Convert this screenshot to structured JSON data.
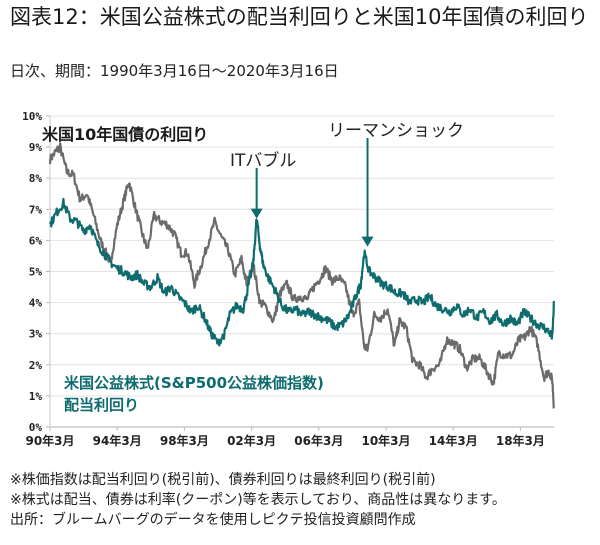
{
  "header": {
    "title": "図表12：米国公益株式の配当利回りと米国10年国債の利回り",
    "subtitle": "日次、期間：1990年3月16日～2020年3月16日"
  },
  "chart_data": {
    "type": "line",
    "title": "図表12：米国公益株式の配当利回りと米国10年国債の利回り",
    "xlabel": "",
    "ylabel": "",
    "xlim": [
      1990.2,
      2020.2
    ],
    "ylim": [
      0,
      10
    ],
    "grid": true,
    "y_ticks": [
      "0%",
      "1%",
      "2%",
      "3%",
      "4%",
      "5%",
      "6%",
      "7%",
      "8%",
      "9%",
      "10%"
    ],
    "x_ticks": [
      {
        "value": 1990.2,
        "label": "90年3月"
      },
      {
        "value": 1994.2,
        "label": "94年3月"
      },
      {
        "value": 1998.2,
        "label": "98年3月"
      },
      {
        "value": 2002.2,
        "label": "02年3月"
      },
      {
        "value": 2006.2,
        "label": "06年3月"
      },
      {
        "value": 2010.2,
        "label": "10年3月"
      },
      {
        "value": 2014.2,
        "label": "14年3月"
      },
      {
        "value": 2018.2,
        "label": "18年3月"
      }
    ],
    "series": [
      {
        "name": "米国10年国債の利回り",
        "color": "#6b6b6b",
        "x": [
          1990.2,
          1990.6,
          1990.8,
          1991.2,
          1991.6,
          1992.0,
          1992.4,
          1992.8,
          1993.2,
          1993.6,
          1993.8,
          1994.2,
          1994.6,
          1994.9,
          1995.3,
          1995.7,
          1996.0,
          1996.4,
          1996.8,
          1997.2,
          1997.6,
          1998.0,
          1998.4,
          1998.8,
          1999.2,
          1999.6,
          2000.0,
          2000.4,
          2000.8,
          2001.2,
          2001.6,
          2001.9,
          2002.3,
          2002.7,
          2003.0,
          2003.5,
          2003.9,
          2004.3,
          2004.7,
          2005.1,
          2005.5,
          2005.9,
          2006.3,
          2006.6,
          2007.0,
          2007.4,
          2007.8,
          2008.2,
          2008.6,
          2008.9,
          2009.1,
          2009.5,
          2009.9,
          2010.3,
          2010.7,
          2011.0,
          2011.4,
          2011.8,
          2012.2,
          2012.6,
          2013.0,
          2013.4,
          2013.8,
          2014.2,
          2014.6,
          2015.0,
          2015.4,
          2015.8,
          2016.2,
          2016.6,
          2016.9,
          2017.3,
          2017.7,
          2018.1,
          2018.5,
          2018.8,
          2019.2,
          2019.6,
          2019.9,
          2020.1,
          2020.2
        ],
        "y": [
          8.6,
          8.9,
          9.0,
          8.2,
          8.1,
          7.3,
          7.5,
          6.8,
          6.0,
          5.5,
          5.3,
          6.5,
          7.3,
          7.9,
          7.0,
          6.2,
          5.7,
          6.8,
          6.6,
          6.5,
          6.2,
          5.6,
          5.6,
          4.6,
          5.2,
          5.9,
          6.6,
          6.1,
          5.7,
          4.9,
          5.4,
          4.6,
          5.2,
          4.0,
          3.9,
          3.4,
          4.3,
          4.6,
          4.1,
          4.2,
          4.1,
          4.5,
          4.8,
          5.1,
          4.7,
          4.8,
          4.5,
          3.6,
          4.0,
          2.6,
          2.5,
          3.6,
          3.5,
          3.8,
          2.6,
          3.4,
          3.2,
          2.1,
          2.0,
          1.6,
          1.9,
          2.0,
          2.8,
          2.7,
          2.5,
          1.9,
          2.2,
          2.2,
          1.8,
          1.4,
          2.4,
          2.3,
          2.3,
          2.8,
          2.9,
          3.2,
          2.7,
          1.6,
          1.8,
          1.5,
          0.6
        ]
      },
      {
        "name": "米国公益株式(S&P500公益株価指数)配当利回り",
        "color": "#0e6b6e",
        "x": [
          1990.2,
          1990.6,
          1991.0,
          1991.4,
          1991.8,
          1992.2,
          1992.6,
          1993.0,
          1993.4,
          1993.8,
          1994.2,
          1994.6,
          1995.0,
          1995.4,
          1995.8,
          1996.2,
          1996.6,
          1997.0,
          1997.4,
          1997.8,
          1998.2,
          1998.6,
          1999.0,
          1999.4,
          1999.8,
          2000.2,
          2000.6,
          2000.9,
          2001.3,
          2001.7,
          2002.0,
          2002.3,
          2002.5,
          2002.7,
          2002.9,
          2003.2,
          2003.6,
          2004.0,
          2004.4,
          2004.8,
          2005.2,
          2005.6,
          2006.0,
          2006.4,
          2006.8,
          2007.2,
          2007.6,
          2008.0,
          2008.4,
          2008.7,
          2008.9,
          2009.2,
          2009.6,
          2010.0,
          2010.4,
          2010.8,
          2011.2,
          2011.6,
          2012.0,
          2012.4,
          2012.8,
          2013.2,
          2013.6,
          2014.0,
          2014.4,
          2014.8,
          2015.2,
          2015.6,
          2016.0,
          2016.4,
          2016.8,
          2017.2,
          2017.6,
          2018.0,
          2018.4,
          2018.8,
          2019.2,
          2019.6,
          2020.0,
          2020.1,
          2020.2
        ],
        "y": [
          6.5,
          6.9,
          7.2,
          6.7,
          6.6,
          6.3,
          6.5,
          5.9,
          5.6,
          5.3,
          5.1,
          5.0,
          4.8,
          4.9,
          4.6,
          4.5,
          4.8,
          4.3,
          4.5,
          4.2,
          4.0,
          3.7,
          3.9,
          3.5,
          3.0,
          2.7,
          3.0,
          3.6,
          3.9,
          3.8,
          4.5,
          5.3,
          6.7,
          5.8,
          5.2,
          4.8,
          4.4,
          3.9,
          3.7,
          3.8,
          3.6,
          3.7,
          3.6,
          3.5,
          3.4,
          3.2,
          3.3,
          3.6,
          4.2,
          4.6,
          5.6,
          5.0,
          4.8,
          4.6,
          4.5,
          4.3,
          4.3,
          4.0,
          4.1,
          4.0,
          4.2,
          3.9,
          3.8,
          3.7,
          3.9,
          3.6,
          3.8,
          3.5,
          3.7,
          3.4,
          3.6,
          3.3,
          3.5,
          3.3,
          3.7,
          3.5,
          3.3,
          3.2,
          3.0,
          2.9,
          4.0
        ]
      }
    ],
    "annotations": [
      {
        "text": "米国10年国債の利回り",
        "color": "#1a1a1a"
      },
      {
        "text": "ITバブル",
        "x": 2002.5,
        "arrow_to_y": 6.7
      },
      {
        "text": "リーマンショック",
        "x": 2009.1,
        "arrow_to_y": 5.8
      },
      {
        "text_line1": "米国公益株式(S&P500公益株価指数)",
        "text_line2": "配当利回り",
        "color": "#0e6b6e"
      }
    ]
  },
  "footer": {
    "notes": [
      "※株価指数は配当利回り(税引前)、債券利回りは最終利回り(税引前)",
      "※株式は配当、債券は利率(クーポン)等を表示しており、商品性は異なります。",
      "出所：ブルームバーグのデータを使用しピクテ投信投資顧問作成"
    ]
  }
}
